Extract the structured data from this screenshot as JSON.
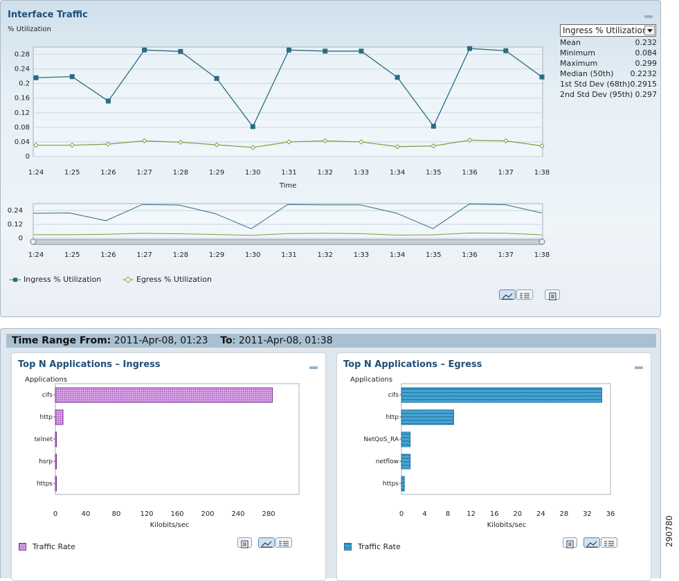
{
  "traffic": {
    "title": "Interface Traffic",
    "ylabel": "% Utilization",
    "xlabel": "Time",
    "dropdown_value": "Ingress % Utilization",
    "stats": [
      {
        "label": "Mean",
        "value": "0.232"
      },
      {
        "label": "Minimum",
        "value": "0.084"
      },
      {
        "label": "Maximum",
        "value": "0.299"
      },
      {
        "label": "Median (50th)",
        "value": "0.2232"
      },
      {
        "label": "1st Std Dev (68th)",
        "value": "0.2915"
      },
      {
        "label": "2nd Std Dev (95th)",
        "value": "0.297"
      }
    ],
    "legend": {
      "ingress": "Ingress % Utilization",
      "egress": "Egress % Utilization"
    }
  },
  "time_range": {
    "from_label": "Time Range From:",
    "from_value": "2011-Apr-08, 01:23",
    "to_label": "To",
    "to_value": ": 2011-Apr-08, 01:38"
  },
  "ingress_panel": {
    "title": "Top N Applications – Ingress",
    "ylabel": "Applications",
    "xlabel": "Kilobits/sec",
    "legend": "Traffic Rate"
  },
  "egress_panel": {
    "title": "Top N Applications – Egress",
    "ylabel": "Applications",
    "xlabel": "Kilobits/sec",
    "legend": "Traffic Rate"
  },
  "side_label": "290780",
  "colors": {
    "ingress_line": "#2a6b83",
    "egress_line": "#7f9a3c",
    "ingress_bar": "#cc88dd",
    "egress_bar": "#3399cc",
    "title": "#1f4e79"
  },
  "chart_data": [
    {
      "type": "line",
      "x": [
        "1:24",
        "1:25",
        "1:26",
        "1:27",
        "1:28",
        "1:29",
        "1:30",
        "1:31",
        "1:32",
        "1:33",
        "1:34",
        "1:35",
        "1:36",
        "1:37",
        "1:38"
      ],
      "series": [
        {
          "name": "Ingress % Utilization",
          "values": [
            0.216,
            0.219,
            0.152,
            0.292,
            0.288,
            0.214,
            0.082,
            0.292,
            0.289,
            0.289,
            0.217,
            0.083,
            0.296,
            0.29,
            0.218
          ]
        },
        {
          "name": "Egress % Utilization",
          "values": [
            0.031,
            0.031,
            0.034,
            0.043,
            0.039,
            0.032,
            0.025,
            0.04,
            0.043,
            0.04,
            0.027,
            0.029,
            0.045,
            0.043,
            0.029
          ]
        }
      ],
      "xlabel": "Time",
      "ylabel": "% Utilization",
      "yticks": [
        "0",
        "0.04",
        "0.08",
        "0.12",
        "0.16",
        "0.2",
        "0.24",
        "0.28"
      ],
      "ylim": [
        0,
        0.3
      ],
      "legend": "bottom-left",
      "grid": true
    },
    {
      "type": "line",
      "x": [
        "1:24",
        "1:25",
        "1:26",
        "1:27",
        "1:28",
        "1:29",
        "1:30",
        "1:31",
        "1:32",
        "1:33",
        "1:34",
        "1:35",
        "1:36",
        "1:37",
        "1:38"
      ],
      "yticks": [
        "0",
        "0.12",
        "0.24"
      ],
      "ylim": [
        0,
        0.3
      ],
      "grid": true
    },
    {
      "type": "bar",
      "categories": [
        "cifs",
        "http",
        "telnet",
        "hsrp",
        "https"
      ],
      "series": [
        {
          "name": "Traffic Rate",
          "values": [
            285,
            10,
            0.5,
            0.5,
            0.5
          ]
        }
      ],
      "xlabel": "Kilobits/sec",
      "ylabel": "Applications",
      "xticks": [
        "0",
        "40",
        "80",
        "120",
        "160",
        "200",
        "240",
        "280"
      ],
      "xlim": [
        0,
        320
      ],
      "legend": "bottom-left",
      "grid": false
    },
    {
      "type": "bar",
      "categories": [
        "cifs",
        "http",
        "NetQoS_RA",
        "netflow",
        "https"
      ],
      "series": [
        {
          "name": "Traffic Rate",
          "values": [
            34.5,
            9,
            1.5,
            1.5,
            0.5
          ]
        }
      ],
      "xlabel": "Kilobits/sec",
      "ylabel": "Applications",
      "xticks": [
        "0",
        "4",
        "8",
        "12",
        "16",
        "20",
        "24",
        "28",
        "32",
        "36"
      ],
      "xlim": [
        0,
        36
      ],
      "legend": "bottom-left",
      "grid": false
    }
  ]
}
